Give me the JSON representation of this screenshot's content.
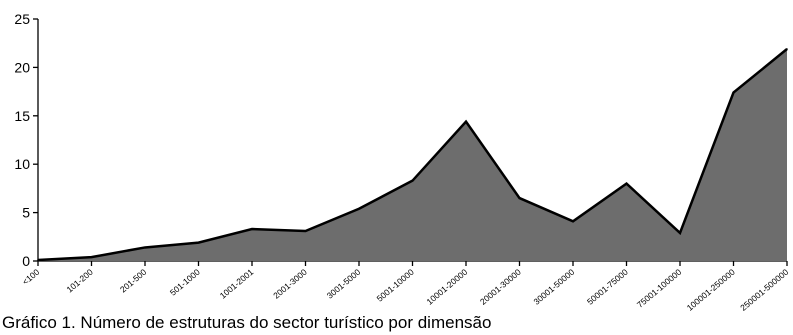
{
  "chart_data": {
    "type": "area",
    "categories": [
      "<100",
      "101-200",
      "201-500",
      "501-1000",
      "1001-2001",
      "2001-3000",
      "3001-5000",
      "5001-10000",
      "10001-20000",
      "20001-30000",
      "30001-50000",
      "50001-75000",
      "75001-100000",
      "100001-250000",
      "250001-500000"
    ],
    "values": [
      0.1,
      0.4,
      1.4,
      1.9,
      3.3,
      3.1,
      5.4,
      8.3,
      14.4,
      6.5,
      4.1,
      8.0,
      2.9,
      17.4,
      21.9
    ],
    "ylim": [
      0,
      25
    ],
    "yticks": [
      "0",
      "5",
      "10",
      "15",
      "20",
      "25"
    ],
    "xlabel": "",
    "ylabel": "",
    "title": "",
    "grid": false,
    "legend": "none",
    "fill_color": "#6d6d6d",
    "line_color": "#000000"
  },
  "caption": {
    "text": "Gráfico 1. Número de estruturas do sector turístico por dimensão"
  }
}
